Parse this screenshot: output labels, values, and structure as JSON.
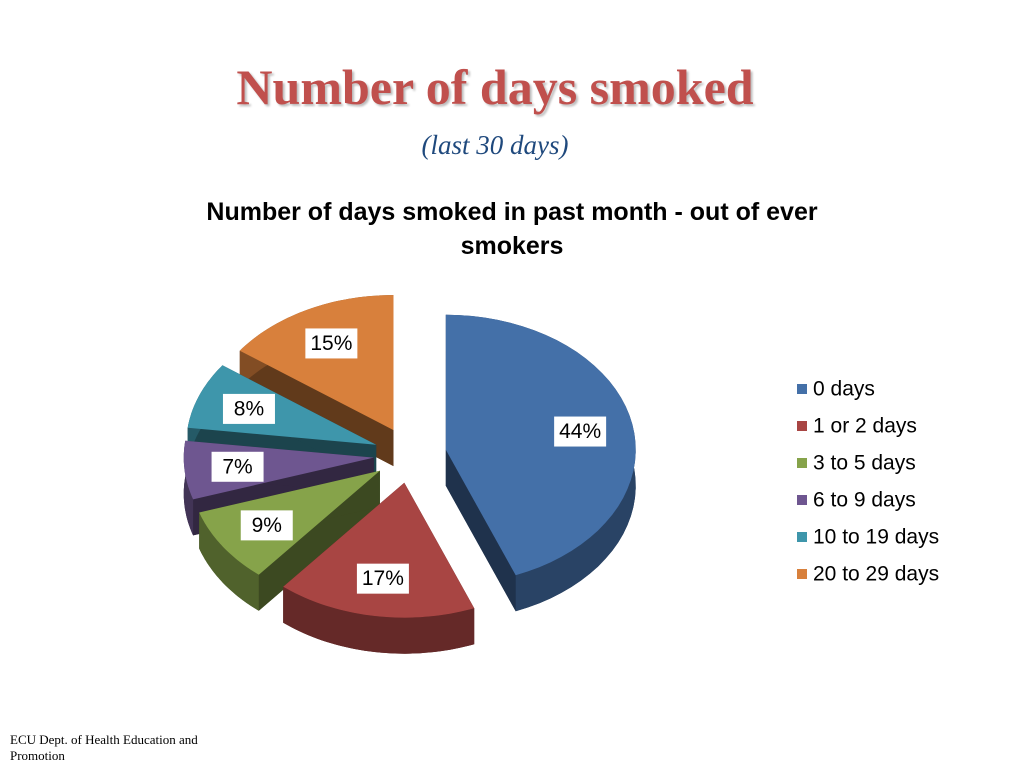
{
  "slide": {
    "title": "Number of days smoked",
    "subtitle": "(last 30 days)",
    "footer": "ECU Dept. of Health Education and Promotion"
  },
  "chart_data": {
    "type": "pie",
    "title": "Number of days smoked in past month - out of ever smokers",
    "categories": [
      "0 days",
      "1 or 2 days",
      "3 to 5 days",
      "6 to 9 days",
      "10 to 19 days",
      "20 to 29 days"
    ],
    "values": [
      44,
      17,
      9,
      7,
      8,
      15
    ],
    "value_labels": [
      "44%",
      "17%",
      "9%",
      "7%",
      "8%",
      "15%"
    ],
    "colors": [
      "#4470a8",
      "#a84543",
      "#86a34a",
      "#6e5690",
      "#3e96ab",
      "#d8803c"
    ],
    "legend": "right"
  }
}
